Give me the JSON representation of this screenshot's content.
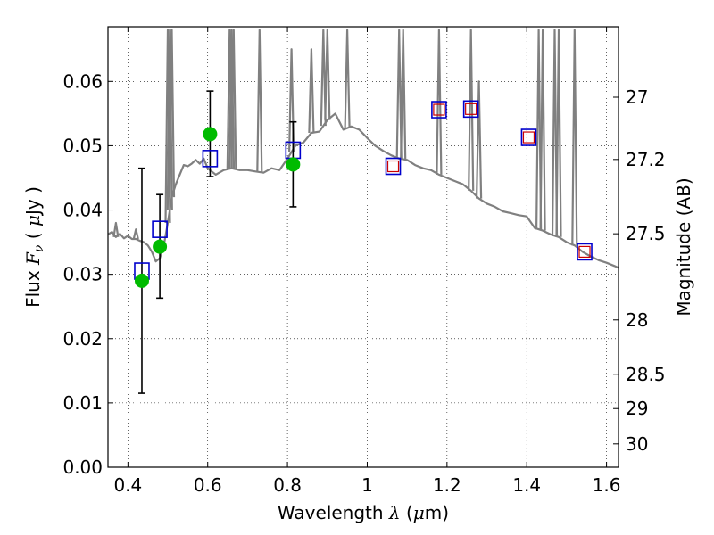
{
  "chart_data": {
    "type": "scatter",
    "xlabel": {
      "prefix": "Wavelength  ",
      "symbol": "λ",
      "unit_open": " (",
      "unit_mu": "μ",
      "unit_rest": "m)"
    },
    "ylabel": {
      "prefix": "Flux  ",
      "symbol": "F",
      "subscript": "ν",
      "unit_open": "  ( ",
      "unit_mu": "μ",
      "unit_rest": "Jy )"
    },
    "y2label": "Magnitude (AB)",
    "xlim": [
      0.35,
      1.63
    ],
    "ylim": [
      0.0,
      0.0685
    ],
    "x_ticks": [
      0.4,
      0.6,
      0.8,
      1.0,
      1.2,
      1.4,
      1.6
    ],
    "x_tick_labels": [
      "0.4",
      "0.6",
      "0.8",
      "1",
      "1.2",
      "1.4",
      "1.6"
    ],
    "y_ticks": [
      0.0,
      0.01,
      0.02,
      0.03,
      0.04,
      0.05,
      0.06
    ],
    "y_tick_labels": [
      "0.00",
      "0.01",
      "0.02",
      "0.03",
      "0.04",
      "0.05",
      "0.06"
    ],
    "y2_ticks": [
      27.0,
      27.2,
      27.5,
      28.0,
      28.5,
      29.0,
      30.0
    ],
    "y2_tick_labels": [
      "27",
      "27.2",
      "27.5",
      "28",
      "28.5",
      "29",
      "30"
    ],
    "grid": true,
    "colors": {
      "model": "#808080",
      "observed": "#00bb00",
      "model_points": "#0000cc",
      "model_points_inner": "#cc0000",
      "errorbar": "#000000"
    },
    "series": [
      {
        "role": "model_spectrum",
        "x": [
          0.35,
          0.36,
          0.37,
          0.38,
          0.39,
          0.4,
          0.41,
          0.42,
          0.43,
          0.44,
          0.45,
          0.46,
          0.47,
          0.48,
          0.49,
          0.5,
          0.51,
          0.52,
          0.53,
          0.54,
          0.55,
          0.56,
          0.57,
          0.58,
          0.59,
          0.6,
          0.62,
          0.64,
          0.66,
          0.68,
          0.7,
          0.72,
          0.74,
          0.76,
          0.78,
          0.8,
          0.82,
          0.84,
          0.86,
          0.88,
          0.9,
          0.92,
          0.94,
          0.96,
          0.98,
          1.0,
          1.02,
          1.04,
          1.06,
          1.08,
          1.1,
          1.12,
          1.14,
          1.16,
          1.18,
          1.2,
          1.22,
          1.24,
          1.26,
          1.28,
          1.3,
          1.32,
          1.34,
          1.36,
          1.38,
          1.4,
          1.42,
          1.44,
          1.46,
          1.48,
          1.5,
          1.52,
          1.54,
          1.56,
          1.58,
          1.6,
          1.62,
          1.63
        ],
        "y": [
          0.0362,
          0.0366,
          0.0358,
          0.0363,
          0.0356,
          0.036,
          0.0355,
          0.0355,
          0.0352,
          0.035,
          0.0345,
          0.0335,
          0.032,
          0.0325,
          0.0345,
          0.038,
          0.042,
          0.044,
          0.0455,
          0.047,
          0.0468,
          0.0472,
          0.0478,
          0.0472,
          0.048,
          0.0465,
          0.0455,
          0.0462,
          0.0465,
          0.0462,
          0.0462,
          0.046,
          0.0458,
          0.0465,
          0.0462,
          0.048,
          0.05,
          0.0505,
          0.052,
          0.0522,
          0.054,
          0.055,
          0.0525,
          0.053,
          0.0525,
          0.0512,
          0.05,
          0.0492,
          0.0485,
          0.048,
          0.0478,
          0.047,
          0.0465,
          0.0462,
          0.0455,
          0.045,
          0.0445,
          0.044,
          0.043,
          0.0418,
          0.041,
          0.0405,
          0.0398,
          0.0395,
          0.0392,
          0.039,
          0.0372,
          0.0368,
          0.0362,
          0.0358,
          0.035,
          0.0345,
          0.0335,
          0.0328,
          0.0322,
          0.0318,
          0.0313,
          0.031
        ]
      },
      {
        "role": "model_emission_lines",
        "x": [
          0.37,
          0.42,
          0.5,
          0.505,
          0.51,
          0.655,
          0.66,
          0.665,
          0.73,
          0.81,
          0.86,
          0.89,
          0.9,
          0.95,
          1.08,
          1.09,
          1.18,
          1.26,
          1.28,
          1.43,
          1.44,
          1.47,
          1.48,
          1.52
        ],
        "y": [
          0.038,
          0.037,
          0.068,
          0.068,
          0.068,
          0.068,
          0.068,
          0.068,
          0.068,
          0.065,
          0.065,
          0.068,
          0.068,
          0.068,
          0.068,
          0.068,
          0.068,
          0.068,
          0.06,
          0.068,
          0.068,
          0.068,
          0.068,
          0.068
        ]
      },
      {
        "role": "observed",
        "x": [
          0.435,
          0.48,
          0.606,
          0.814
        ],
        "y": [
          0.029,
          0.0343,
          0.0518,
          0.0471
        ],
        "err_low": [
          0.0115,
          0.0263,
          0.0452,
          0.0405
        ],
        "err_high": [
          0.0465,
          0.0424,
          0.0585,
          0.0537
        ]
      },
      {
        "role": "model_photometry",
        "x": [
          0.435,
          0.48,
          0.606,
          0.814,
          1.065,
          1.18,
          1.26,
          1.405,
          1.545
        ],
        "y": [
          0.0305,
          0.037,
          0.048,
          0.0493,
          0.0468,
          0.0556,
          0.0557,
          0.0513,
          0.0335
        ],
        "inner": [
          false,
          false,
          false,
          false,
          true,
          true,
          true,
          true,
          true
        ]
      }
    ]
  }
}
